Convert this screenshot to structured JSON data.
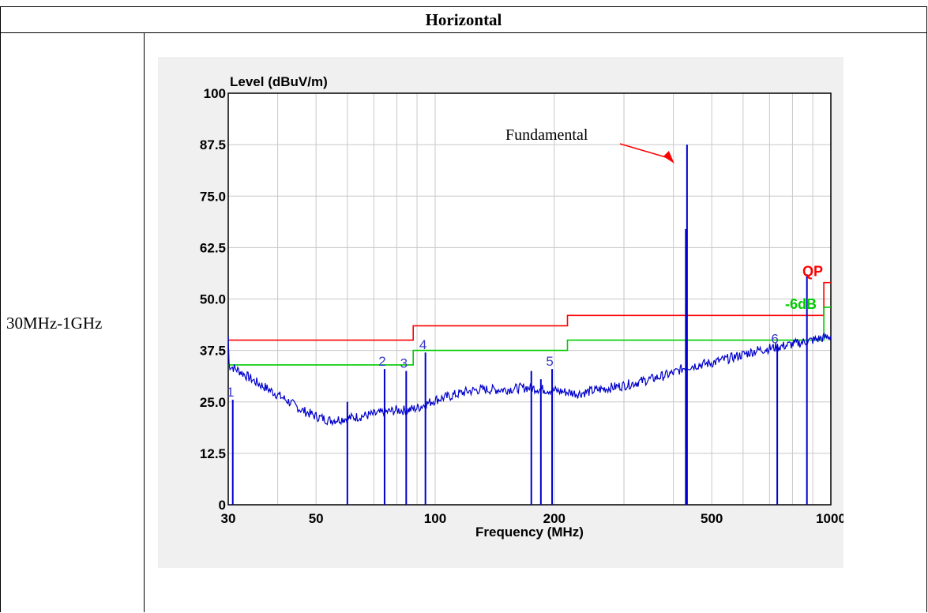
{
  "table": {
    "header": "Horizontal",
    "row_label": "30MHz-1GHz"
  },
  "colors": {
    "trace": "#0000cc",
    "limit_qp": "#ff0000",
    "limit_6db": "#00cc00",
    "grid": "#c8c8c8",
    "panel": "#f0f0f0"
  },
  "chart_data": {
    "type": "line",
    "title": "Level (dBuV/m)",
    "xlabel": "Frequency (MHz)",
    "ylabel": "Level (dBuV/m)",
    "x_scale": "log",
    "xlim": [
      30,
      1000
    ],
    "ylim": [
      0,
      100
    ],
    "x_ticks": [
      30,
      50,
      100,
      200,
      500,
      1000
    ],
    "x_tick_labels": [
      "30",
      "50",
      "100",
      "200",
      "500",
      "1000"
    ],
    "y_ticks": [
      0,
      12.5,
      25.0,
      37.5,
      50.0,
      62.5,
      75.0,
      87.5,
      100
    ],
    "y_tick_labels": [
      "0",
      "12.5",
      "25.0",
      "37.5",
      "50.0",
      "62.5",
      "75.0",
      "87.5",
      "100"
    ],
    "grid": true,
    "series": [
      {
        "name": "QP",
        "points": [
          [
            30,
            40.0
          ],
          [
            88,
            40.0
          ],
          [
            88,
            43.5
          ],
          [
            216,
            43.5
          ],
          [
            216,
            46.0
          ],
          [
            960,
            46.0
          ],
          [
            960,
            54.0
          ],
          [
            1000,
            54.0
          ]
        ]
      },
      {
        "name": "-6dB",
        "points": [
          [
            30,
            34.0
          ],
          [
            88,
            34.0
          ],
          [
            88,
            37.5
          ],
          [
            216,
            37.5
          ],
          [
            216,
            40.0
          ],
          [
            960,
            40.0
          ],
          [
            960,
            48.0
          ],
          [
            1000,
            48.0
          ]
        ]
      },
      {
        "points": [
          [
            30,
            34
          ],
          [
            32,
            32.5
          ],
          [
            35,
            30
          ],
          [
            38,
            28
          ],
          [
            42,
            25.5
          ],
          [
            46,
            23
          ],
          [
            50,
            21.5
          ],
          [
            54,
            20.5
          ],
          [
            60,
            21
          ],
          [
            65,
            21.5
          ],
          [
            70,
            22
          ],
          [
            75,
            22.5
          ],
          [
            80,
            23
          ],
          [
            85,
            23
          ],
          [
            90,
            23.5
          ],
          [
            95,
            24.5
          ],
          [
            100,
            25.5
          ],
          [
            110,
            26.5
          ],
          [
            120,
            27.5
          ],
          [
            130,
            28
          ],
          [
            150,
            28
          ],
          [
            170,
            28.5
          ],
          [
            190,
            28
          ],
          [
            210,
            27.5
          ],
          [
            230,
            27
          ],
          [
            260,
            28
          ],
          [
            300,
            29
          ],
          [
            350,
            30.5
          ],
          [
            400,
            32
          ],
          [
            430,
            33.5
          ],
          [
            500,
            34.5
          ],
          [
            550,
            35.5
          ],
          [
            600,
            36.5
          ],
          [
            650,
            37.5
          ],
          [
            700,
            38
          ],
          [
            750,
            38.5
          ],
          [
            800,
            39
          ],
          [
            850,
            39.5
          ],
          [
            900,
            40
          ],
          [
            950,
            40.5
          ],
          [
            1000,
            41
          ]
        ]
      }
    ],
    "spikes": [
      {
        "x": 30.8,
        "y": 25.5
      },
      {
        "x": 74.5,
        "y": 33
      },
      {
        "x": 84.5,
        "y": 32.5
      },
      {
        "x": 94.5,
        "y": 37
      },
      {
        "x": 197.5,
        "y": 33
      },
      {
        "x": 433,
        "y": 87.5
      },
      {
        "x": 430,
        "y": 67
      },
      {
        "x": 732,
        "y": 38.5
      },
      {
        "x": 870,
        "y": 56
      },
      {
        "x": 60,
        "y": 25
      },
      {
        "x": 175,
        "y": 32.5
      },
      {
        "x": 185,
        "y": 30.5
      }
    ],
    "markers": [
      {
        "label": "1",
        "x": 30.8,
        "y": 25.5
      },
      {
        "label": "2",
        "x": 74.5,
        "y": 33
      },
      {
        "label": "3",
        "x": 84.5,
        "y": 32.5
      },
      {
        "label": "4",
        "x": 94.5,
        "y": 37
      },
      {
        "label": "5",
        "x": 197.5,
        "y": 33
      },
      {
        "label": "6",
        "x": 732,
        "y": 38.5
      }
    ],
    "limit_labels": [
      "QP",
      "-6dB"
    ],
    "annotations": [
      {
        "text": "Fundamental",
        "points_to": [
          433,
          81
        ]
      }
    ]
  }
}
